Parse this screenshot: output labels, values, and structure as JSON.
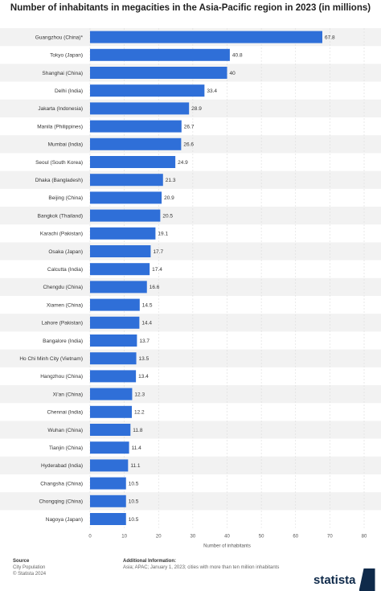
{
  "title": "Number of inhabitants in megacities in the Asia-Pacific region in 2023 (in millions)",
  "chart_data": {
    "type": "bar",
    "orientation": "horizontal",
    "title": "Number of inhabitants in megacities in the Asia-Pacific region in 2023 (in millions)",
    "xlabel": "Number of inhabitants",
    "ylabel": "",
    "xlim": [
      0,
      80
    ],
    "xticks": [
      0,
      10,
      20,
      30,
      40,
      50,
      60,
      70,
      80
    ],
    "grid": true,
    "bar_color": "#2f6fd8",
    "categories": [
      "Guangzhou (China)*",
      "Tokyo (Japan)",
      "Shanghai (China)",
      "Delhi (India)",
      "Jakarta (Indonesia)",
      "Manila (Philippines)",
      "Mumbai (India)",
      "Seoul (South Korea)",
      "Dhaka (Bangladesh)",
      "Beijing (China)",
      "Bangkok (Thailand)",
      "Karachi (Pakistan)",
      "Osaka (Japan)",
      "Calcutta (India)",
      "Chengdu (China)",
      "Xiamen (China)",
      "Lahore (Pakistan)",
      "Bangalore (India)",
      "Ho Chi Minh City (Vietnam)",
      "Hangzhou (China)",
      "Xi'an (China)",
      "Chennai (India)",
      "Wuhan (China)",
      "Tianjin (China)",
      "Hyderabad (India)",
      "Changsha (China)",
      "Chongqing (China)",
      "Nagoya (Japan)"
    ],
    "values": [
      67.8,
      40.8,
      40,
      33.4,
      28.9,
      26.7,
      26.6,
      24.9,
      21.3,
      20.9,
      20.5,
      19.1,
      17.7,
      17.4,
      16.6,
      14.5,
      14.4,
      13.7,
      13.5,
      13.4,
      12.3,
      12.2,
      11.8,
      11.4,
      11.1,
      10.5,
      10.5,
      10.5
    ]
  },
  "footer": {
    "source_heading": "Source",
    "source_lines": [
      "City Population",
      "© Statista 2024"
    ],
    "info_heading": "Additional Information:",
    "info_text": "Asia; APAC; January 1, 2023; cities with more than ten million inhabitants",
    "brand": "statista"
  }
}
